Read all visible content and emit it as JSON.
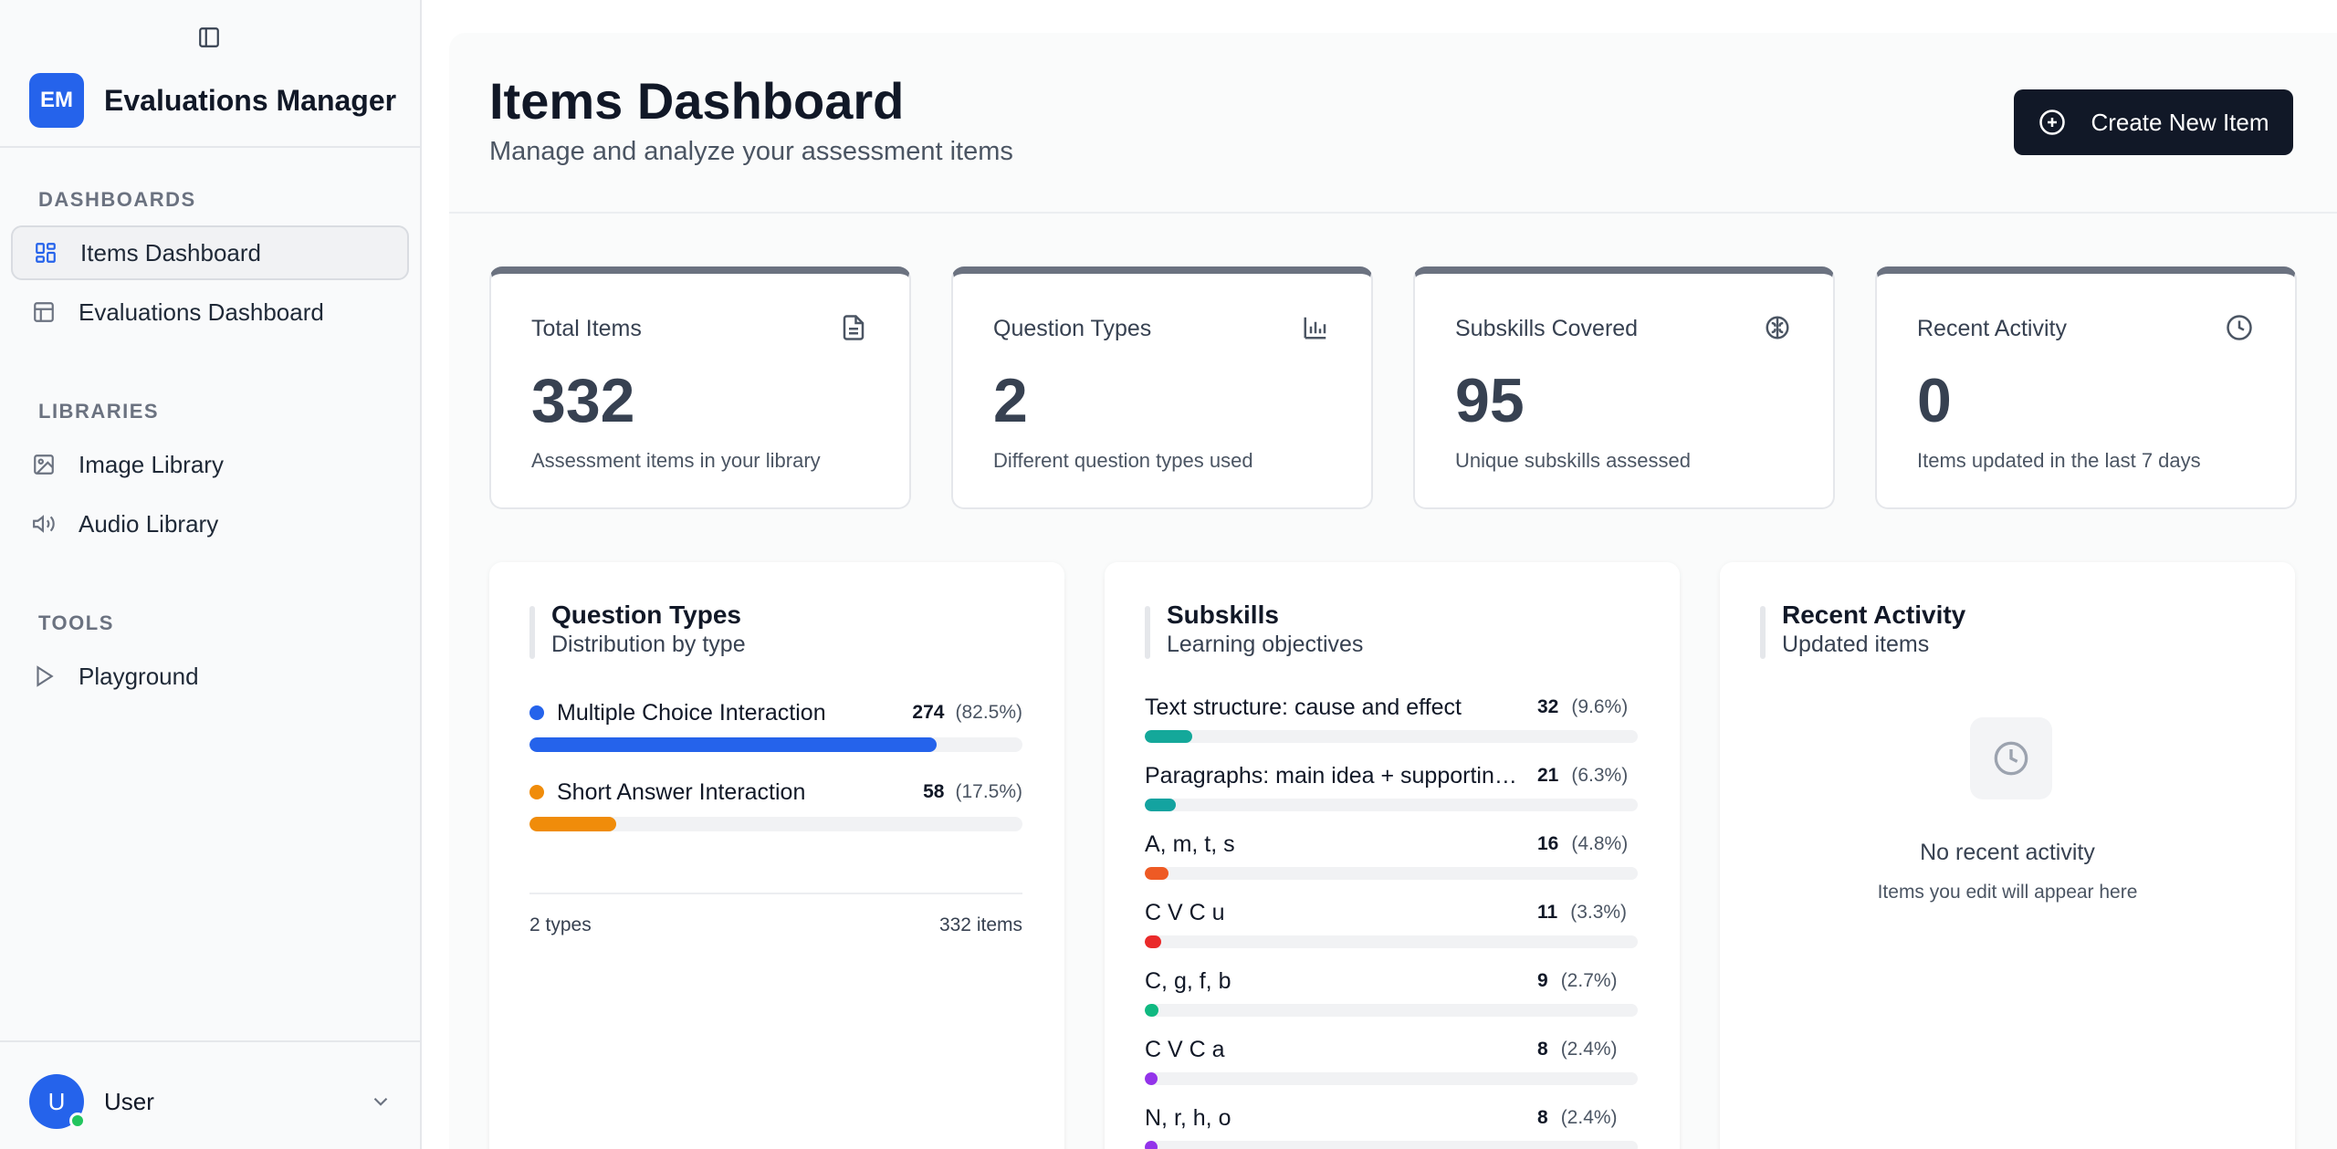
{
  "sidebar": {
    "brand": {
      "initials": "EM",
      "name": "Evaluations Manager"
    },
    "sections": [
      {
        "title": "DASHBOARDS",
        "items": [
          {
            "label": "Items Dashboard",
            "icon": "grid-icon",
            "active": true
          },
          {
            "label": "Evaluations Dashboard",
            "icon": "table-icon",
            "active": false
          }
        ]
      },
      {
        "title": "LIBRARIES",
        "items": [
          {
            "label": "Image Library",
            "icon": "image-icon",
            "active": false
          },
          {
            "label": "Audio Library",
            "icon": "speaker-icon",
            "active": false
          }
        ]
      },
      {
        "title": "TOOLS",
        "items": [
          {
            "label": "Playground",
            "icon": "play-icon",
            "active": false
          }
        ]
      }
    ],
    "user": {
      "initial": "U",
      "name": "User",
      "status_color": "#22c55e"
    }
  },
  "header": {
    "title": "Items Dashboard",
    "subtitle": "Manage and analyze your assessment items",
    "create_label": "Create New Item"
  },
  "stats": [
    {
      "label": "Total Items",
      "value": "332",
      "desc": "Assessment items in your library",
      "icon": "document-icon"
    },
    {
      "label": "Question Types",
      "value": "2",
      "desc": "Different question types used",
      "icon": "bar-chart-icon"
    },
    {
      "label": "Subskills Covered",
      "value": "95",
      "desc": "Unique subskills assessed",
      "icon": "brain-icon"
    },
    {
      "label": "Recent Activity",
      "value": "0",
      "desc": "Items updated in the last 7 days",
      "icon": "clock-icon"
    }
  ],
  "question_types": {
    "title": "Question Types",
    "subtitle": "Distribution by type",
    "rows": [
      {
        "label": "Multiple Choice Interaction",
        "count": "274",
        "pct": "(82.5%)",
        "fraction": 0.825,
        "color": "#2563eb"
      },
      {
        "label": "Short Answer Interaction",
        "count": "58",
        "pct": "(17.5%)",
        "fraction": 0.175,
        "color": "#f08c0a"
      }
    ],
    "footer_left": "2 types",
    "footer_right": "332 items"
  },
  "subskills": {
    "title": "Subskills",
    "subtitle": "Learning objectives",
    "rows": [
      {
        "label": "Text structure: cause and effect",
        "count": "32",
        "pct": "(9.6%)",
        "fraction": 0.096,
        "color": "#14a89a"
      },
      {
        "label": "Paragraphs: main idea + supportin…",
        "count": "21",
        "pct": "(6.3%)",
        "fraction": 0.063,
        "color": "#14a3a0"
      },
      {
        "label": "A, m, t, s",
        "count": "16",
        "pct": "(4.8%)",
        "fraction": 0.048,
        "color": "#ee5a24"
      },
      {
        "label": "C V C u",
        "count": "11",
        "pct": "(3.3%)",
        "fraction": 0.033,
        "color": "#ea2a2a"
      },
      {
        "label": "C, g, f, b",
        "count": "9",
        "pct": "(2.7%)",
        "fraction": 0.027,
        "color": "#10b981"
      },
      {
        "label": "C V C a",
        "count": "8",
        "pct": "(2.4%)",
        "fraction": 0.024,
        "color": "#9333ea"
      },
      {
        "label": "N, r, h, o",
        "count": "8",
        "pct": "(2.4%)",
        "fraction": 0.024,
        "color": "#9333ea"
      }
    ]
  },
  "recent_activity": {
    "title": "Recent Activity",
    "subtitle": "Updated items",
    "empty_title": "No recent activity",
    "empty_sub": "Items you edit will appear here"
  }
}
